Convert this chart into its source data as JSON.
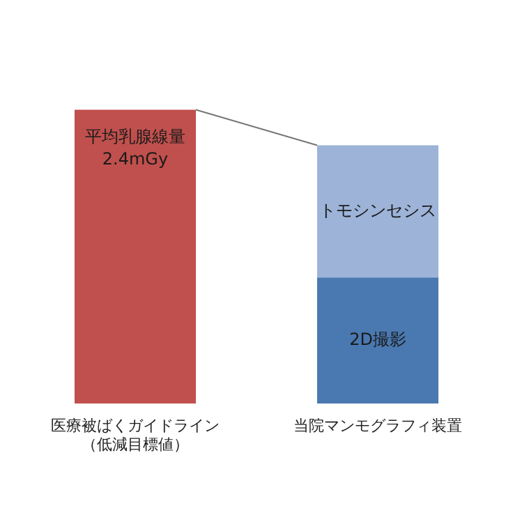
{
  "chart_data": {
    "type": "bar",
    "stacked": true,
    "categories": [
      "医療被ばくガイドライン（低減目標値）",
      "当院マンモグラフィ装置"
    ],
    "series": [
      {
        "color": "#c0504d",
        "values": [
          2.4,
          null
        ],
        "value_labels": [
          "平均乳腺線量\n2.4mGy",
          null
        ]
      },
      {
        "name": "2D撮影",
        "color": "#4a78b0",
        "values": [
          null,
          1.03
        ]
      },
      {
        "name": "トモシンセシス",
        "color": "#9db3d8",
        "values": [
          null,
          1.08
        ]
      }
    ],
    "grid": false,
    "legend": false,
    "tick_labels": "x"
  }
}
